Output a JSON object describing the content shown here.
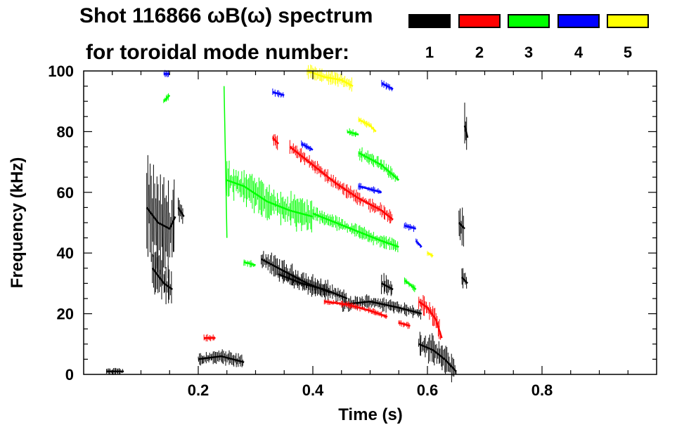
{
  "chart_data": {
    "type": "scatter",
    "title_line1": "Shot 116866 ωB(ω) spectrum",
    "title_line2": "for toroidal mode number:",
    "xlabel": "Time (s)",
    "ylabel": "Frequency (kHz)",
    "xlim": [
      0.0,
      1.0
    ],
    "ylim": [
      0,
      100
    ],
    "xticks": [
      0.2,
      0.4,
      0.6,
      0.8
    ],
    "xtick_labels": [
      "0.2",
      "0.4",
      "0.6",
      "0.8"
    ],
    "yticks": [
      0,
      20,
      40,
      60,
      80,
      100
    ],
    "ytick_labels": [
      "0",
      "20",
      "40",
      "60",
      "80",
      "100"
    ],
    "legend": [
      {
        "label": "1",
        "color": "#000000"
      },
      {
        "label": "2",
        "color": "#ff0000"
      },
      {
        "label": "3",
        "color": "#00ff00"
      },
      {
        "label": "4",
        "color": "#0000ff"
      },
      {
        "label": "5",
        "color": "#ffff00"
      }
    ],
    "series": [
      {
        "name": "1",
        "color": "#000000",
        "segments": [
          {
            "t": [
              0.11,
              0.13,
              0.15,
              0.16
            ],
            "f": [
              55,
              50,
              48,
              52
            ],
            "spread": 14
          },
          {
            "t": [
              0.12,
              0.14,
              0.155
            ],
            "f": [
              35,
              30,
              28
            ],
            "spread": 6
          },
          {
            "t": [
              0.165,
              0.175
            ],
            "f": [
              55,
              52
            ],
            "spread": 4
          },
          {
            "t": [
              0.2,
              0.24,
              0.28
            ],
            "f": [
              5,
              6,
              4
            ],
            "spread": 2
          },
          {
            "t": [
              0.31,
              0.35,
              0.39,
              0.43
            ],
            "f": [
              38,
              34,
              30,
              27
            ],
            "spread": 3
          },
          {
            "t": [
              0.34,
              0.38,
              0.42,
              0.46
            ],
            "f": [
              33,
              30,
              28,
              25
            ],
            "spread": 2
          },
          {
            "t": [
              0.45,
              0.5,
              0.55,
              0.59
            ],
            "f": [
              23,
              24,
              22,
              20
            ],
            "spread": 2
          },
          {
            "t": [
              0.52,
              0.54
            ],
            "f": [
              30,
              28
            ],
            "spread": 3
          },
          {
            "t": [
              0.585,
              0.61,
              0.63,
              0.65
            ],
            "f": [
              10,
              8,
              5,
              1
            ],
            "spread": 4
          },
          {
            "t": [
              0.655,
              0.665
            ],
            "f": [
              50,
              48
            ],
            "spread": 6
          },
          {
            "t": [
              0.665,
              0.67
            ],
            "f": [
              82,
              78
            ],
            "spread": 6
          },
          {
            "t": [
              0.66,
              0.67
            ],
            "f": [
              32,
              30
            ],
            "spread": 4
          },
          {
            "t": [
              0.04,
              0.07
            ],
            "f": [
              1,
              1
            ],
            "spread": 1
          }
        ]
      },
      {
        "name": "2",
        "color": "#ff0000",
        "segments": [
          {
            "t": [
              0.36,
              0.4,
              0.44,
              0.48,
              0.52,
              0.54
            ],
            "f": [
              75,
              69,
              63,
              58,
              54,
              51
            ],
            "spread": 2
          },
          {
            "t": [
              0.42,
              0.46,
              0.5,
              0.53
            ],
            "f": [
              24,
              23,
              21,
              19
            ],
            "spread": 1
          },
          {
            "t": [
              0.55,
              0.57
            ],
            "f": [
              17,
              16
            ],
            "spread": 1
          },
          {
            "t": [
              0.585,
              0.6,
              0.615,
              0.625
            ],
            "f": [
              24,
              22,
              18,
              12
            ],
            "spread": 3
          },
          {
            "t": [
              0.33,
              0.34
            ],
            "f": [
              78,
              76
            ],
            "spread": 2
          },
          {
            "t": [
              0.21,
              0.23
            ],
            "f": [
              12,
              12
            ],
            "spread": 1
          }
        ]
      },
      {
        "name": "3",
        "color": "#00ff00",
        "segments": [
          {
            "t": [
              0.25,
              0.28,
              0.32,
              0.36,
              0.4
            ],
            "f": [
              64,
              62,
              57,
              54,
              52
            ],
            "spread": 5
          },
          {
            "t": [
              0.4,
              0.44,
              0.48,
              0.52,
              0.55
            ],
            "f": [
              53,
              50,
              47,
              44,
              42
            ],
            "spread": 2
          },
          {
            "t": [
              0.48,
              0.52,
              0.55
            ],
            "f": [
              73,
              69,
              64
            ],
            "spread": 2
          },
          {
            "t": [
              0.46,
              0.48
            ],
            "f": [
              80,
              79
            ],
            "spread": 1
          },
          {
            "t": [
              0.56,
              0.58
            ],
            "f": [
              31,
              28
            ],
            "spread": 1
          },
          {
            "t": [
              0.245,
              0.25
            ],
            "f": [
              95,
              45
            ],
            "spread": 0
          },
          {
            "t": [
              0.14,
              0.15
            ],
            "f": [
              90,
              92
            ],
            "spread": 1
          },
          {
            "t": [
              0.28,
              0.3
            ],
            "f": [
              37,
              36
            ],
            "spread": 1
          }
        ]
      },
      {
        "name": "4",
        "color": "#0000ff",
        "segments": [
          {
            "t": [
              0.38,
              0.4
            ],
            "f": [
              76,
              74
            ],
            "spread": 1
          },
          {
            "t": [
              0.48,
              0.52
            ],
            "f": [
              62,
              60
            ],
            "spread": 1
          },
          {
            "t": [
              0.52,
              0.54
            ],
            "f": [
              96,
              94
            ],
            "spread": 1
          },
          {
            "t": [
              0.33,
              0.35
            ],
            "f": [
              93,
              92
            ],
            "spread": 1
          },
          {
            "t": [
              0.14,
              0.15
            ],
            "f": [
              99,
              99
            ],
            "spread": 1
          },
          {
            "t": [
              0.56,
              0.58
            ],
            "f": [
              49,
              48
            ],
            "spread": 1
          },
          {
            "t": [
              0.58,
              0.59
            ],
            "f": [
              44,
              42
            ],
            "spread": 1
          }
        ]
      },
      {
        "name": "5",
        "color": "#ffff00",
        "segments": [
          {
            "t": [
              0.39,
              0.42,
              0.45,
              0.47
            ],
            "f": [
              100,
              98,
              97,
              95
            ],
            "spread": 2
          },
          {
            "t": [
              0.48,
              0.5,
              0.51
            ],
            "f": [
              84,
              82,
              80
            ],
            "spread": 1
          },
          {
            "t": [
              0.6,
              0.61
            ],
            "f": [
              40,
              39
            ],
            "spread": 1
          }
        ]
      }
    ]
  }
}
